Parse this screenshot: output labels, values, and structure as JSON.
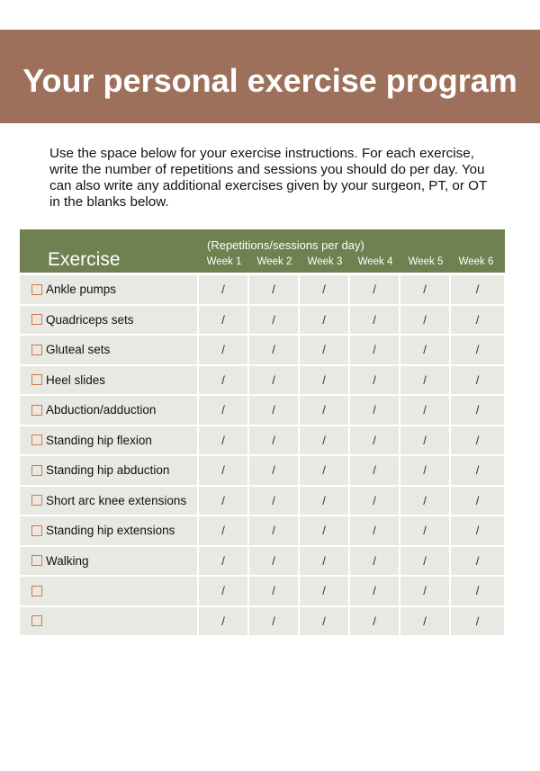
{
  "title": "Your personal exercise program",
  "intro": "Use the space below for your exercise instructions. For each exercise, write the number of repetitions and sessions you should do per day. You can also write any additional exercises given by your surgeon, PT, or OT in the blanks below.",
  "table": {
    "exercise_header": "Exercise",
    "subheader": "(Repetitions/sessions per day)",
    "weeks": [
      "Week 1",
      "Week 2",
      "Week 3",
      "Week 4",
      "Week 5",
      "Week 6"
    ],
    "cell_mark": "/",
    "rows": [
      "Ankle pumps",
      "Quadriceps sets",
      "Gluteal sets",
      "Heel slides",
      "Abduction/adduction",
      "Standing hip flexion",
      "Standing hip abduction",
      "Short arc knee extensions",
      "Standing hip extensions",
      "Walking",
      "",
      ""
    ]
  },
  "colors": {
    "banner": "#9d705c",
    "header": "#6f8150",
    "row": "#e9e9e3",
    "checkbox": "#d4774a"
  }
}
